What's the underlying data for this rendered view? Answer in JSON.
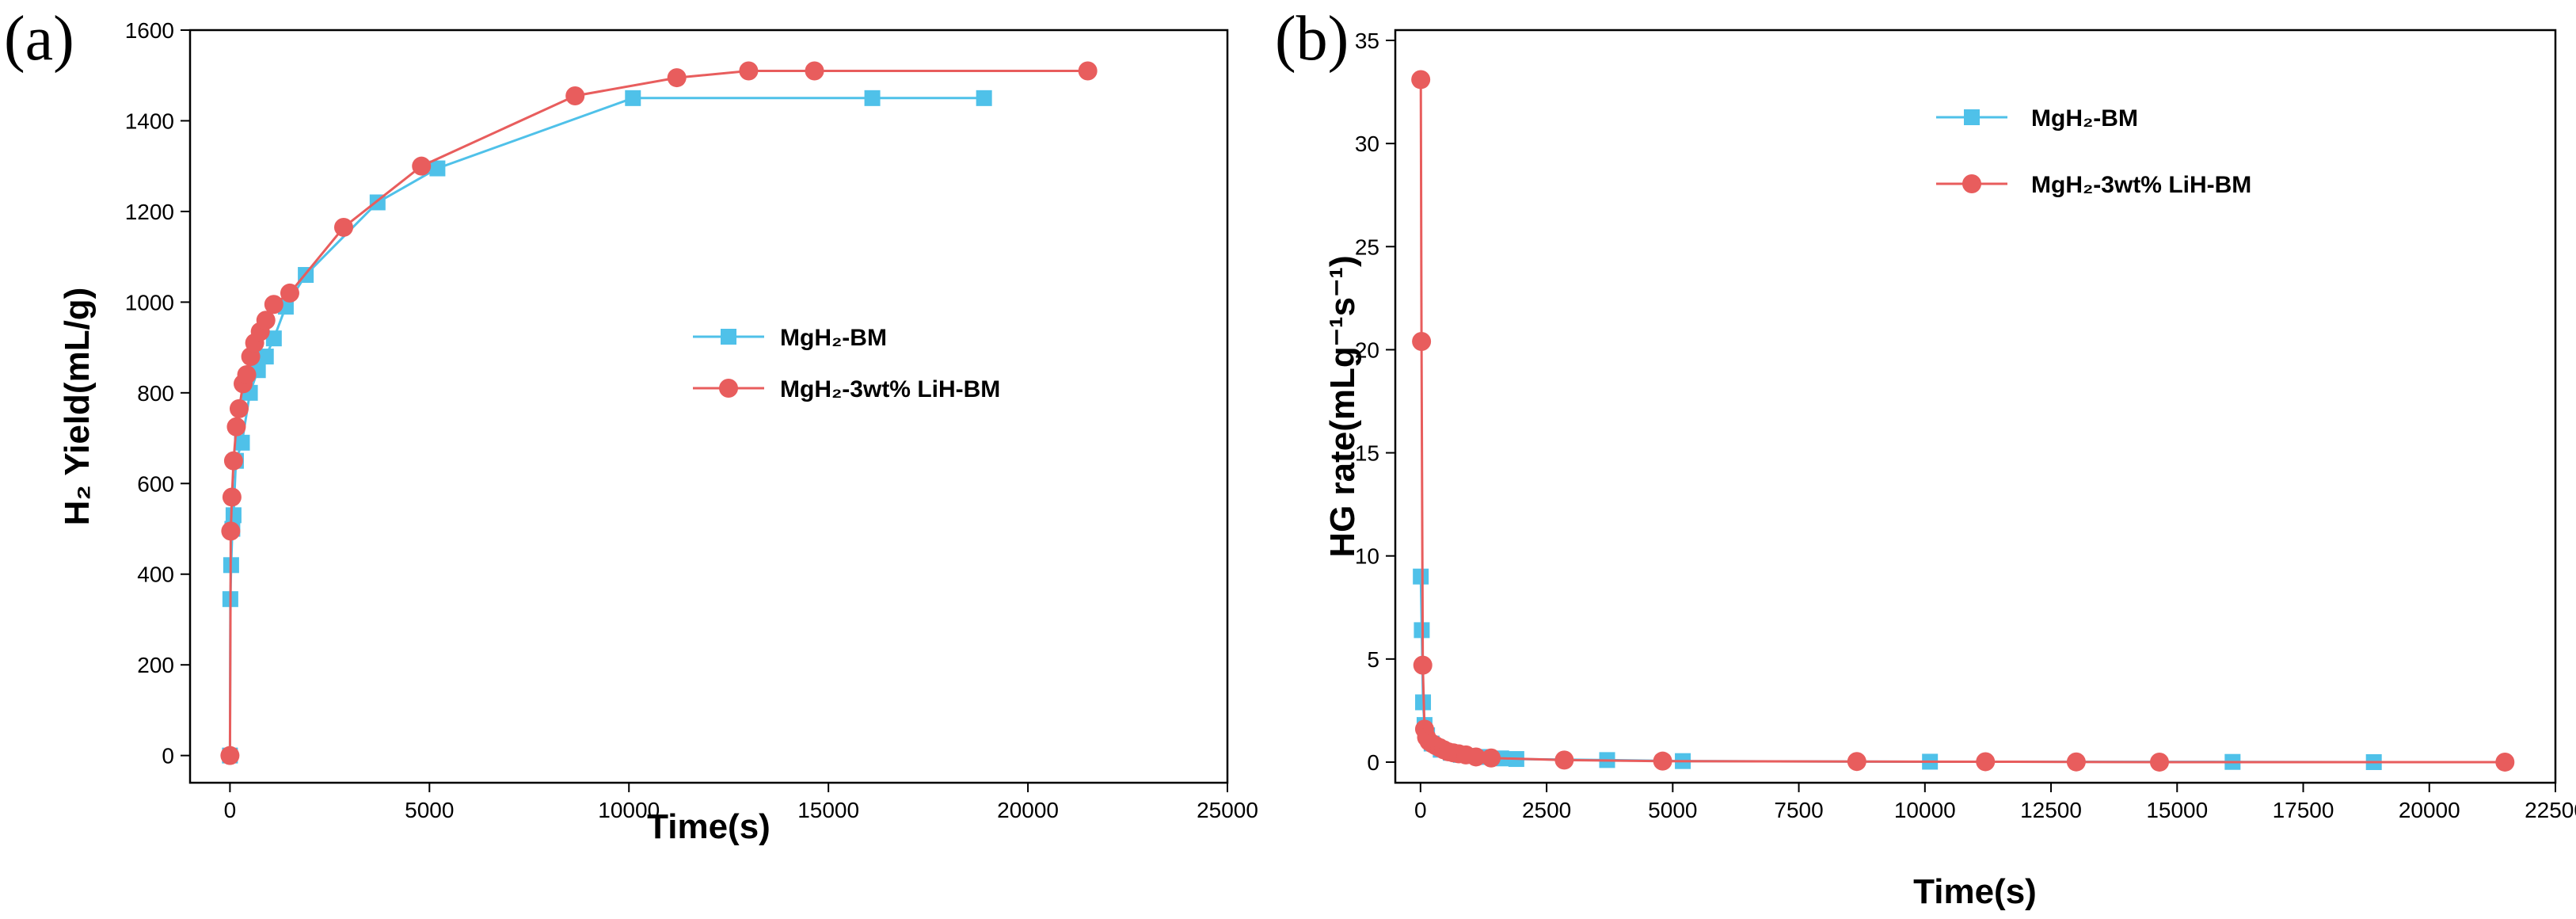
{
  "chart_data": [
    {
      "panel": "(a)",
      "type": "line",
      "xlabel": "Time(s)",
      "ylabel": "H₂ Yield(mL/g)",
      "xlim": [
        -1000,
        25000
      ],
      "ylim": [
        -60,
        1600
      ],
      "xticks": [
        0,
        5000,
        10000,
        15000,
        20000,
        25000
      ],
      "yticks": [
        0,
        200,
        400,
        600,
        800,
        1000,
        1200,
        1400,
        1600
      ],
      "legend_position": "center-right",
      "series": [
        {
          "name": "MgH₂-BM",
          "color": "#4fc1e9",
          "marker": "square",
          "x": [
            0,
            10,
            30,
            60,
            90,
            150,
            300,
            500,
            700,
            900,
            1100,
            1400,
            1900,
            3700,
            5200,
            10100,
            16100,
            18900
          ],
          "y": [
            0,
            345,
            420,
            500,
            530,
            650,
            690,
            800,
            850,
            880,
            920,
            990,
            1060,
            1220,
            1295,
            1450,
            1450,
            1450
          ]
        },
        {
          "name": "MgH₂-3wt% LiH-BM",
          "color": "#e85d5d",
          "marker": "circle",
          "x": [
            0,
            20,
            50,
            90,
            160,
            230,
            330,
            420,
            520,
            620,
            760,
            900,
            1100,
            1500,
            2850,
            4800,
            8650,
            11200,
            13000,
            14650,
            21500
          ],
          "y": [
            0,
            495,
            570,
            650,
            725,
            765,
            820,
            840,
            880,
            910,
            935,
            960,
            995,
            1020,
            1165,
            1300,
            1455,
            1495,
            1510,
            1510,
            1510
          ]
        }
      ]
    },
    {
      "panel": "(b)",
      "type": "line",
      "xlabel": "Time(s)",
      "ylabel": "HG rate(mLg⁻¹s⁻¹)",
      "xlim": [
        -500,
        22500
      ],
      "ylim": [
        -1,
        35.5
      ],
      "xticks": [
        0,
        2500,
        5000,
        7500,
        10000,
        12500,
        15000,
        17500,
        20000,
        22500
      ],
      "yticks": [
        0,
        5,
        10,
        15,
        20,
        25,
        30,
        35
      ],
      "legend_position": "top-right",
      "series": [
        {
          "name": "MgH₂-BM",
          "color": "#4fc1e9",
          "marker": "square",
          "x": [
            5,
            25,
            50,
            80,
            130,
            220,
            400,
            600,
            800,
            1000,
            1250,
            1600,
            1900,
            3700,
            5200,
            10100,
            16100,
            18900
          ],
          "y": [
            9.0,
            6.4,
            2.9,
            1.8,
            1.3,
            0.9,
            0.6,
            0.45,
            0.35,
            0.3,
            0.25,
            0.18,
            0.15,
            0.1,
            0.05,
            0.02,
            0.01,
            0.0
          ]
        },
        {
          "name": "MgH₂-3wt% LiH-BM",
          "color": "#e85d5d",
          "marker": "circle",
          "x": [
            5,
            20,
            45,
            80,
            120,
            170,
            230,
            300,
            380,
            460,
            550,
            650,
            760,
            900,
            1100,
            1400,
            2850,
            4800,
            8650,
            11200,
            13000,
            14650,
            21500
          ],
          "y": [
            33.1,
            20.4,
            4.7,
            1.6,
            1.2,
            1.0,
            0.9,
            0.8,
            0.7,
            0.6,
            0.5,
            0.45,
            0.4,
            0.35,
            0.25,
            0.2,
            0.1,
            0.05,
            0.03,
            0.02,
            0.01,
            0.0,
            0.0
          ]
        }
      ]
    }
  ]
}
